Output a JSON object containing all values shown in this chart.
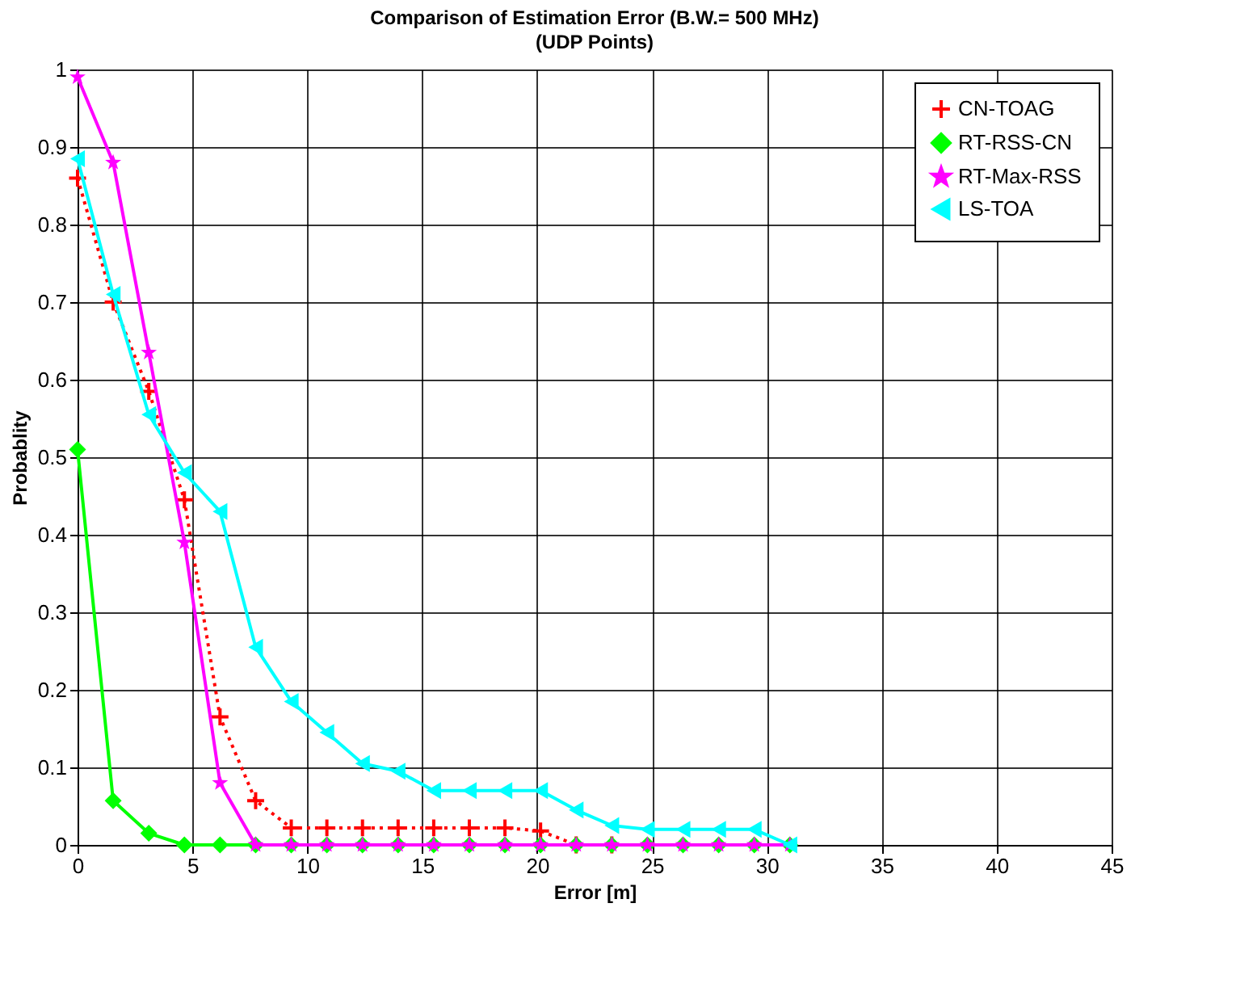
{
  "chart_data": {
    "type": "line",
    "title": "Comparison of Estimation Error  (B.W.= 500 MHz)",
    "subtitle": "(UDP Points)",
    "xlabel": "Error [m]",
    "ylabel": "Probablity",
    "x": [
      0,
      1.55,
      3.1,
      4.65,
      6.2,
      7.75,
      9.3,
      10.85,
      12.4,
      13.95,
      15.5,
      17.05,
      18.6,
      20.15,
      21.7,
      23.25,
      24.8,
      26.35,
      27.9,
      29.45,
      31
    ],
    "series": [
      {
        "name": "CN-TOAG",
        "color": "#ff0000",
        "marker": "cross",
        "line_style": "dotted",
        "values": [
          0.86,
          0.7,
          0.585,
          0.445,
          0.165,
          0.057,
          0.022,
          0.022,
          0.022,
          0.022,
          0.022,
          0.022,
          0.022,
          0.018,
          0,
          0,
          null,
          null,
          null,
          null,
          null
        ]
      },
      {
        "name": "RT-RSS-CN",
        "color": "#00ff00",
        "marker": "diamond",
        "line_style": "solid",
        "values": [
          0.51,
          0.057,
          0.015,
          0,
          0,
          0,
          0,
          0,
          0,
          0,
          0,
          0,
          0,
          0,
          0,
          0,
          0,
          0,
          0,
          0,
          0
        ]
      },
      {
        "name": "RT-Max-RSS",
        "color": "#ff00ff",
        "marker": "star",
        "line_style": "solid",
        "values": [
          0.99,
          0.88,
          0.635,
          0.39,
          0.08,
          0,
          0,
          0,
          0,
          0,
          0,
          0,
          0,
          0,
          0,
          0,
          0,
          0,
          0,
          0,
          0
        ]
      },
      {
        "name": "LS-TOA",
        "color": "#00ffff",
        "marker": "triangle",
        "line_style": "solid",
        "values": [
          0.885,
          0.71,
          0.555,
          0.48,
          0.43,
          0.255,
          0.185,
          0.145,
          0.105,
          0.095,
          0.07,
          0.07,
          0.07,
          0.07,
          0.045,
          0.025,
          0.02,
          0.02,
          0.02,
          0.02,
          0
        ]
      }
    ],
    "xlim": [
      0,
      45
    ],
    "xticks": [
      0,
      5,
      10,
      15,
      20,
      25,
      30,
      35,
      40,
      45
    ],
    "ylim": [
      0,
      1
    ],
    "yticks": [
      0,
      0.1,
      0.2,
      0.3,
      0.4,
      0.5,
      0.6,
      0.7,
      0.8,
      0.9,
      1
    ],
    "grid": true,
    "legend": "top right"
  }
}
